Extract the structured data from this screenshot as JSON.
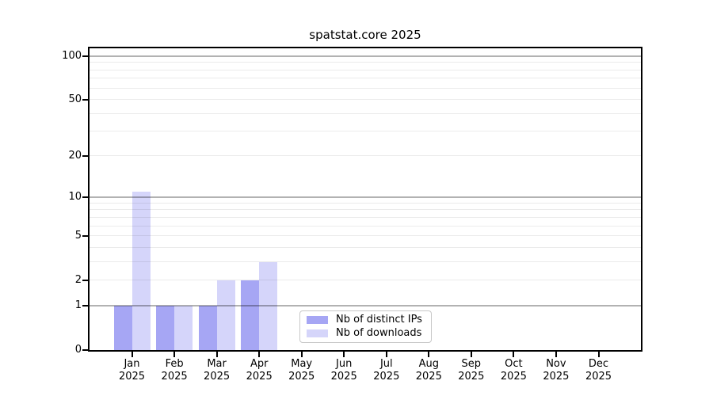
{
  "title": "spatstat.core 2025",
  "legend": [
    {
      "label": "Nb of distinct IPs",
      "color": "rgba(136,136,240,0.75)"
    },
    {
      "label": "Nb of downloads",
      "color": "rgba(136,136,240,0.35)"
    }
  ],
  "colors": {
    "bar_base": "#8888f0",
    "grid_major": "#b4b4b4",
    "grid_minor": "#ececec",
    "axis": "#000000"
  },
  "chart_data": {
    "type": "bar",
    "title": "spatstat.core 2025",
    "categories": [
      "Jan",
      "Feb",
      "Mar",
      "Apr",
      "May",
      "Jun",
      "Jul",
      "Aug",
      "Sep",
      "Oct",
      "Nov",
      "Dec"
    ],
    "year": "2025",
    "series": [
      {
        "name": "Nb of distinct IPs",
        "values": [
          1,
          1,
          1,
          2,
          0,
          0,
          0,
          0,
          0,
          0,
          0,
          0
        ]
      },
      {
        "name": "Nb of downloads",
        "values": [
          11,
          1,
          2,
          3,
          0,
          0,
          0,
          0,
          0,
          0,
          0,
          0
        ]
      }
    ],
    "xlabel": "",
    "ylabel": "",
    "yscale": "log1p",
    "ylim": [
      0,
      115
    ],
    "yticks": [
      0,
      1,
      2,
      5,
      10,
      20,
      50,
      100
    ],
    "major_gridlines": [
      1,
      10,
      100
    ],
    "minor_gridlines": [
      2,
      3,
      4,
      5,
      6,
      7,
      8,
      9,
      20,
      30,
      40,
      50,
      60,
      70,
      80,
      90
    ],
    "grid": "on",
    "legend_position": "lower right inside"
  }
}
